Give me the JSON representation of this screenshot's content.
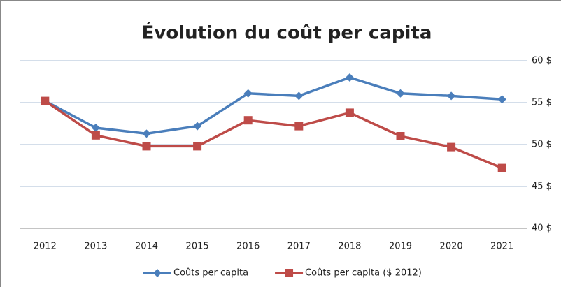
{
  "chart_data": {
    "type": "line",
    "title": "Évolution du coût per capita",
    "categories": [
      "2012",
      "2013",
      "2014",
      "2015",
      "2016",
      "2017",
      "2018",
      "2019",
      "2020",
      "2021"
    ],
    "series": [
      {
        "name": "Coûts per capita",
        "color": "#4a7ebb",
        "marker": "diamond",
        "values": [
          55.2,
          52.0,
          51.3,
          52.2,
          56.1,
          55.8,
          58.0,
          56.1,
          55.8,
          55.4
        ]
      },
      {
        "name": "Coûts per capita ($ 2012)",
        "color": "#be4b48",
        "marker": "square",
        "values": [
          55.2,
          51.1,
          49.8,
          49.8,
          52.9,
          52.2,
          53.8,
          51.0,
          49.7,
          47.2
        ]
      }
    ],
    "ylim": [
      40,
      60
    ],
    "yticks": [
      {
        "value": 40,
        "label": "40 $"
      },
      {
        "value": 45,
        "label": "45 $"
      },
      {
        "value": 50,
        "label": "50 $"
      },
      {
        "value": 55,
        "label": "55 $"
      },
      {
        "value": 60,
        "label": "60 $"
      }
    ],
    "y_axis_side": "right",
    "grid": true,
    "legend": "bottom"
  }
}
